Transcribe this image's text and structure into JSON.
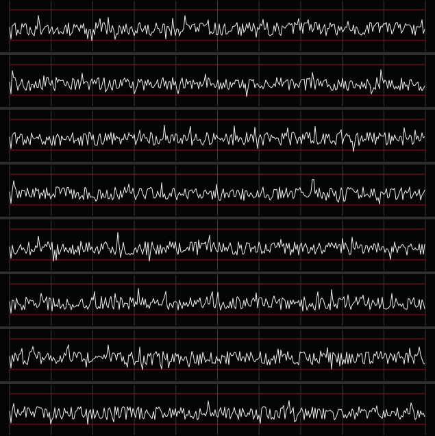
{
  "app": {
    "title": "",
    "theme": {
      "background": "#050505",
      "separator": "#2e2e2e",
      "trace": "#f2f2f2",
      "reference_line": "#b3001b",
      "grid": "#3a3a3a"
    }
  },
  "viewer": {
    "channel_count": 8,
    "grid_divisions": 10,
    "channels": [
      {
        "id": 1,
        "label": ""
      },
      {
        "id": 2,
        "label": ""
      },
      {
        "id": 3,
        "label": ""
      },
      {
        "id": 4,
        "label": ""
      },
      {
        "id": 5,
        "label": ""
      },
      {
        "id": 6,
        "label": ""
      },
      {
        "id": 7,
        "label": ""
      },
      {
        "id": 8,
        "label": ""
      }
    ]
  }
}
